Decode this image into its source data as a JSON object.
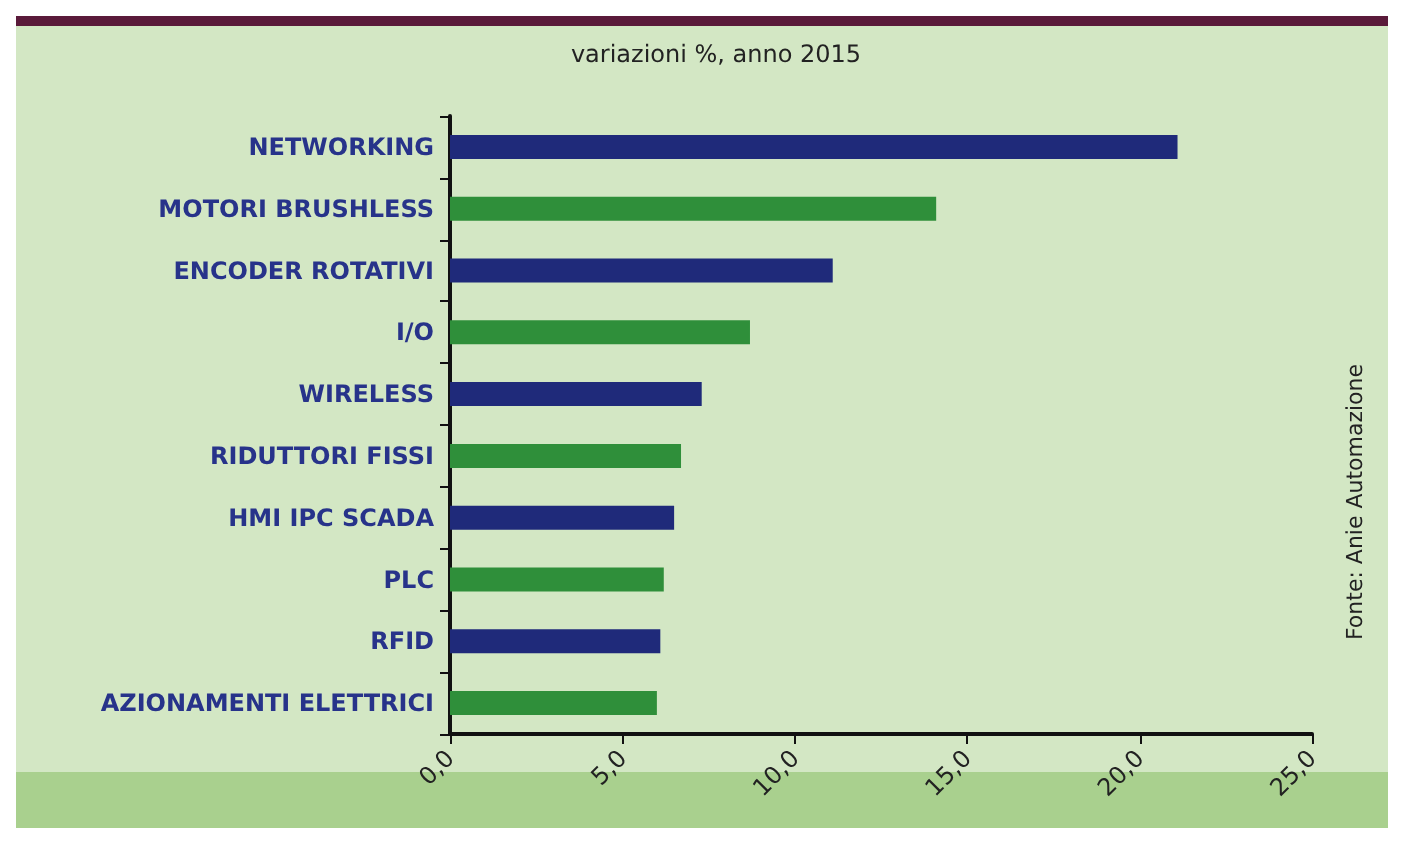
{
  "chart_data": {
    "type": "bar",
    "orientation": "horizontal",
    "title": "variazioni %, anno 2015",
    "categories": [
      "NETWORKING",
      "MOTORI BRUSHLESS",
      "ENCODER ROTATIVI",
      "I/O",
      "WIRELESS",
      "RIDUTTORI FISSI",
      "HMI IPC SCADA",
      "PLC",
      "RFID",
      "AZIONAMENTI ELETTRICI"
    ],
    "values": [
      21.1,
      14.1,
      11.1,
      8.7,
      7.3,
      6.7,
      6.5,
      6.2,
      6.1,
      6.0
    ],
    "colors": [
      "#1f2a7a",
      "#2f8f3a",
      "#1f2a7a",
      "#2f8f3a",
      "#1f2a7a",
      "#2f8f3a",
      "#1f2a7a",
      "#2f8f3a",
      "#1f2a7a",
      "#2f8f3a"
    ],
    "xlim": [
      0,
      25
    ],
    "xticks": [
      {
        "value": 0,
        "label": "0,0"
      },
      {
        "value": 5,
        "label": "5,0"
      },
      {
        "value": 10,
        "label": "10,0"
      },
      {
        "value": 15,
        "label": "15,0"
      },
      {
        "value": 20,
        "label": "20,0"
      },
      {
        "value": 25,
        "label": "25,0"
      }
    ],
    "grid": false,
    "annotations": [
      "Fonte: Anie Automazione"
    ]
  }
}
